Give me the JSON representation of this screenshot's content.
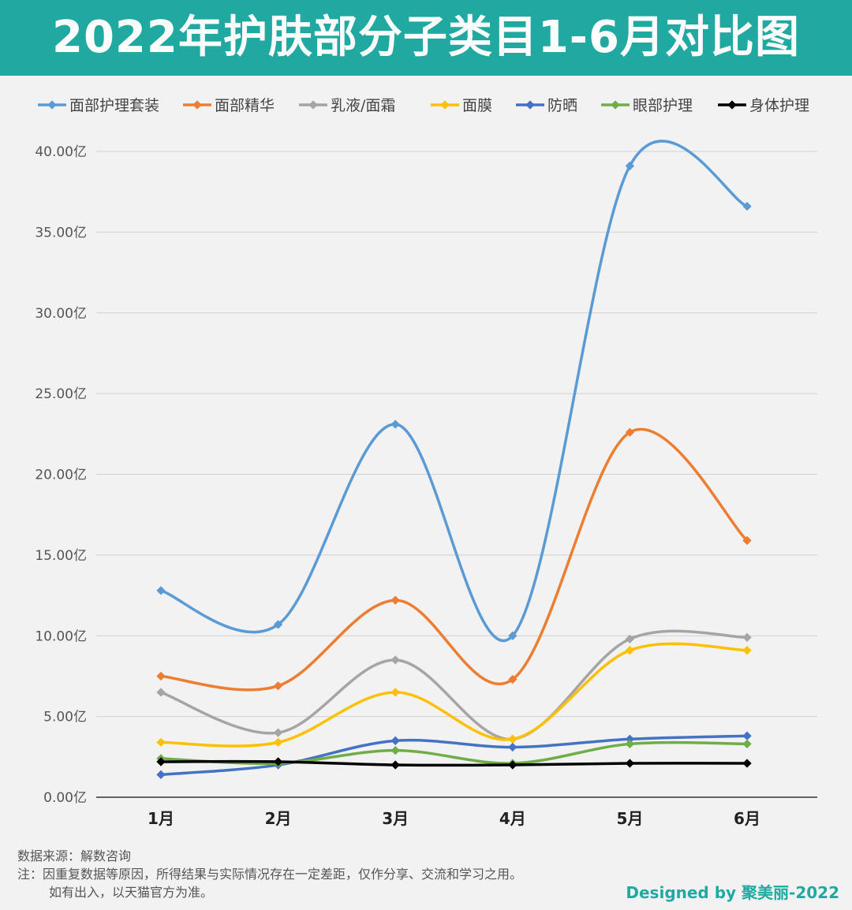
{
  "title": "2022年护肤部分子类目1-6月对比图",
  "footer": {
    "source": "数据来源：解数咨询",
    "note_line1": "注：因重复数据等原因，所得结果与实际情况存在一定差距，仅作分享、交流和学习之用。",
    "note_line2": "如有出入，以天猫官方为准。",
    "credit": "Designed by 聚美丽-2022"
  },
  "chart_data": {
    "type": "line",
    "title": "2022年护肤部分子类目1-6月对比图",
    "xlabel": "",
    "ylabel": "",
    "categories": [
      "1月",
      "2月",
      "3月",
      "4月",
      "5月",
      "6月"
    ],
    "ylim": [
      0,
      40
    ],
    "yticks": [
      "0.00亿",
      "5.00亿",
      "10.00亿",
      "15.00亿",
      "20.00亿",
      "25.00亿",
      "30.00亿",
      "35.00亿",
      "40.00亿"
    ],
    "grid": true,
    "legend_position": "top",
    "smooth": true,
    "series": [
      {
        "name": "面部护理套装",
        "color": "#5b9bd5",
        "values": [
          12.8,
          10.7,
          23.1,
          10.0,
          39.1,
          36.6
        ]
      },
      {
        "name": "面部精华",
        "color": "#ed7d31",
        "values": [
          7.5,
          6.9,
          12.2,
          7.3,
          22.6,
          15.9
        ]
      },
      {
        "name": "乳液/面霜",
        "color": "#a5a5a5",
        "values": [
          6.5,
          4.0,
          8.5,
          3.6,
          9.8,
          9.9
        ]
      },
      {
        "name": "面膜",
        "color": "#ffc000",
        "values": [
          3.4,
          3.4,
          6.5,
          3.6,
          9.1,
          9.1
        ]
      },
      {
        "name": "防晒",
        "color": "#4472c4",
        "values": [
          1.4,
          2.0,
          3.5,
          3.1,
          3.6,
          3.8
        ]
      },
      {
        "name": "眼部护理",
        "color": "#70ad47",
        "values": [
          2.4,
          2.1,
          2.9,
          2.1,
          3.3,
          3.3
        ]
      },
      {
        "name": "身体护理",
        "color": "#000000",
        "values": [
          2.2,
          2.2,
          2.0,
          2.0,
          2.1,
          2.1
        ]
      }
    ]
  }
}
